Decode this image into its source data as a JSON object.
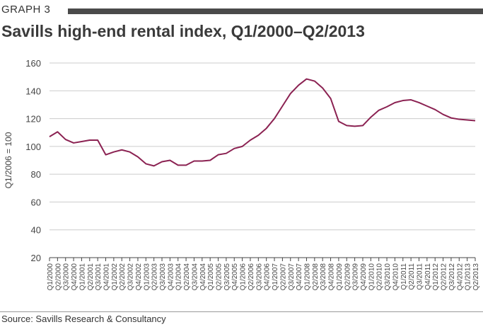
{
  "header": {
    "graph_label": "GRAPH 3",
    "title": "Savills high-end rental index, Q1/2000–Q2/2013"
  },
  "footer": {
    "source": "Source: Savills Research & Consultancy"
  },
  "colors": {
    "line": "#8b2252",
    "grid": "#cccccc",
    "rule": "#4a4a4a"
  },
  "chart_data": {
    "type": "line",
    "title": "Savills high-end rental index, Q1/2000–Q2/2013",
    "xlabel": "",
    "ylabel": "Q1/2006 = 100",
    "ylim": [
      20,
      160
    ],
    "yticks": [
      20,
      40,
      60,
      80,
      100,
      120,
      140,
      160
    ],
    "grid": true,
    "categories": [
      "Q1/2000",
      "Q2/2000",
      "Q3/2000",
      "Q4/2000",
      "Q1/2001",
      "Q2/2001",
      "Q3/2001",
      "Q4/2001",
      "Q1/2002",
      "Q2/2002",
      "Q3/2002",
      "Q4/2002",
      "Q1/2003",
      "Q2/2003",
      "Q3/2003",
      "Q4/2003",
      "Q1/2004",
      "Q2/2004",
      "Q3/2004",
      "Q4/2004",
      "Q1/2005",
      "Q2/2005",
      "Q3/2005",
      "Q4/2005",
      "Q1/2006",
      "Q2/2006",
      "Q3/2006",
      "Q4/2006",
      "Q1/2007",
      "Q2/2007",
      "Q3/2007",
      "Q4/2007",
      "Q1/2008",
      "Q2/2008",
      "Q3/2008",
      "Q4/2008",
      "Q1/2009",
      "Q2/2009",
      "Q3/2009",
      "Q4/2009",
      "Q1/2010",
      "Q2/2010",
      "Q3/2010",
      "Q4/2010",
      "Q1/2011",
      "Q2/2011",
      "Q3/2011",
      "Q4/2011",
      "Q1/2012",
      "Q2/2012",
      "Q3/2012",
      "Q4/2012",
      "Q1/2013",
      "Q2/2013"
    ],
    "series": [
      {
        "values": [
          107,
          110.5,
          105,
          102.5,
          103.5,
          104.5,
          104.5,
          94,
          96,
          97.5,
          96,
          92.5,
          87.5,
          86,
          89,
          90,
          86.5,
          86.5,
          89.5,
          89.5,
          90,
          94,
          95,
          98.5,
          100,
          104.5,
          108,
          113,
          120,
          129,
          138,
          144,
          148.5,
          147,
          142,
          134.5,
          118,
          115,
          114.5,
          115,
          121,
          126,
          128.5,
          131.5,
          133,
          133.5,
          131.5,
          129,
          126.5,
          123,
          120.5,
          119.5,
          119,
          118.5
        ]
      }
    ]
  }
}
